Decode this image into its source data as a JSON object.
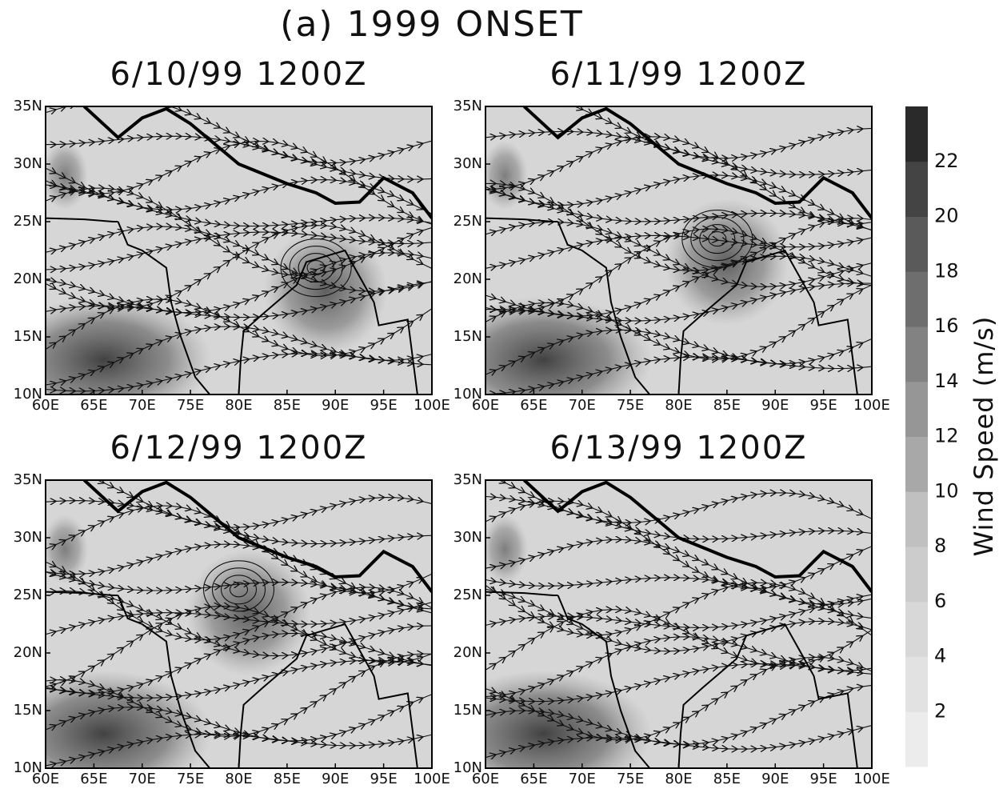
{
  "title": "(a) 1999 ONSET",
  "panels": [
    {
      "title": "6/10/99 1200Z"
    },
    {
      "title": "6/11/99 1200Z"
    },
    {
      "title": "6/12/99 1200Z"
    },
    {
      "title": "6/13/99 1200Z"
    }
  ],
  "xlim": [
    60,
    100
  ],
  "xticks": [
    {
      "value": 60,
      "label": "60E"
    },
    {
      "value": 65,
      "label": "65E"
    },
    {
      "value": 70,
      "label": "70E"
    },
    {
      "value": 75,
      "label": "75E"
    },
    {
      "value": 80,
      "label": "80E"
    },
    {
      "value": 85,
      "label": "85E"
    },
    {
      "value": 90,
      "label": "90E"
    },
    {
      "value": 95,
      "label": "95E"
    },
    {
      "value": 100,
      "label": "100E"
    }
  ],
  "ylim": [
    10,
    35
  ],
  "yticks": [
    {
      "value": 10,
      "label": "10N"
    },
    {
      "value": 15,
      "label": "15N"
    },
    {
      "value": 20,
      "label": "20N"
    },
    {
      "value": 25,
      "label": "25N"
    },
    {
      "value": 30,
      "label": "30N"
    },
    {
      "value": 35,
      "label": "35N"
    }
  ],
  "colorbar": {
    "label": "Wind Speed (m/s)",
    "range": [
      0,
      24
    ],
    "ticks": [
      2,
      4,
      6,
      8,
      10,
      12,
      14,
      16,
      18,
      20,
      22
    ],
    "colors": [
      "#ececec",
      "#e2e2e2",
      "#d8d8d8",
      "#cccccc",
      "#c0c0c0",
      "#a8a8a8",
      "#969696",
      "#828282",
      "#6e6e6e",
      "#5a5a5a",
      "#444444",
      "#2a2a2a"
    ]
  }
}
